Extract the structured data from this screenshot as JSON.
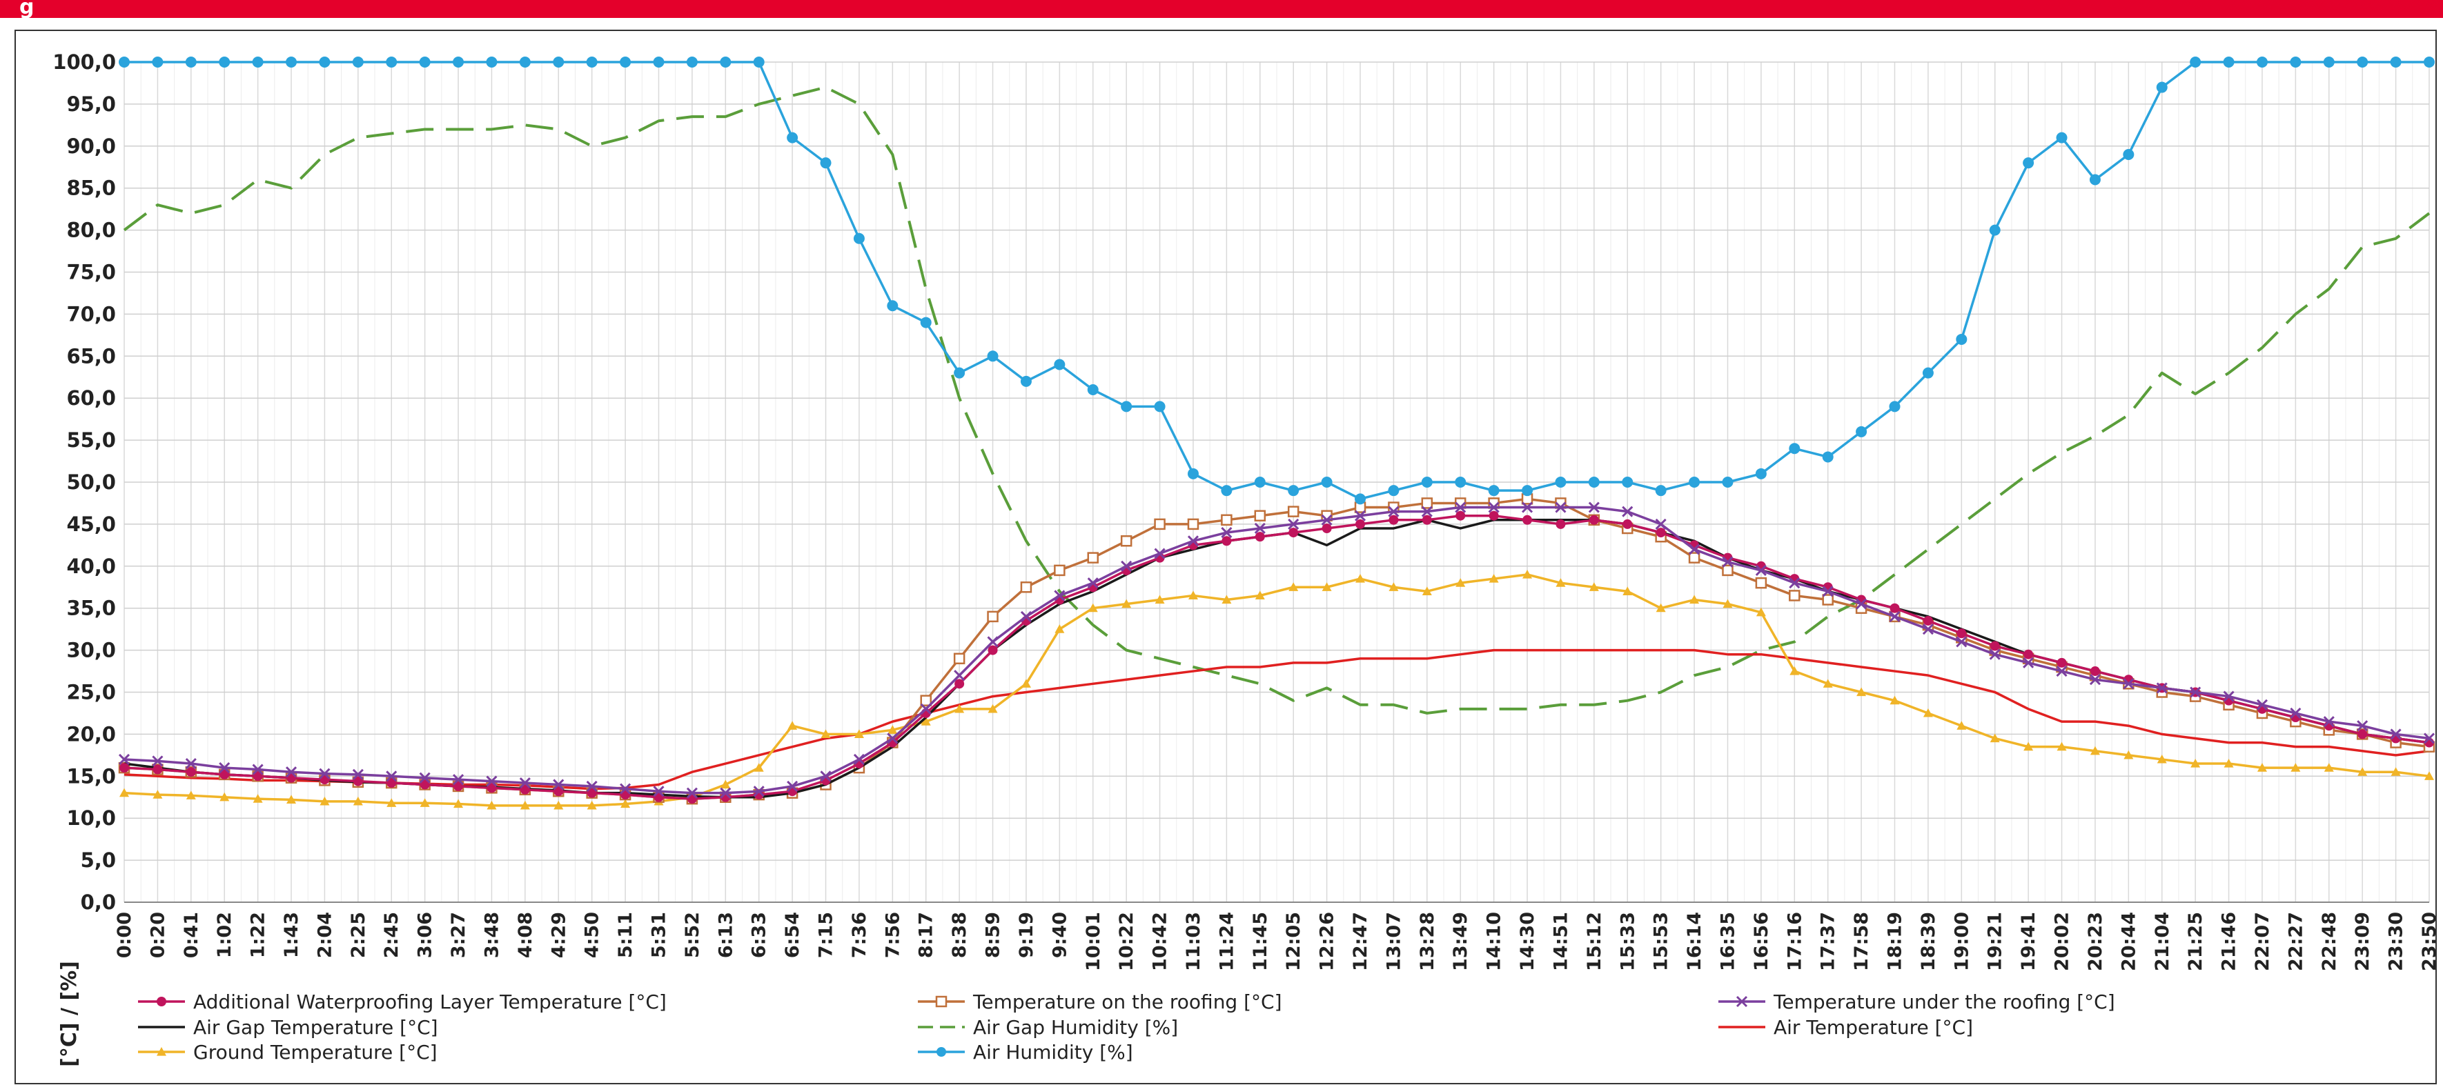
{
  "header": {
    "title": "g"
  },
  "chart_data": {
    "type": "line",
    "y_label": "[°C] / [%]",
    "ylim": [
      0,
      100
    ],
    "yticks": [
      {
        "value": 0,
        "label": "0,0"
      },
      {
        "value": 5,
        "label": "5,0"
      },
      {
        "value": 10,
        "label": "10,0"
      },
      {
        "value": 15,
        "label": "15,0"
      },
      {
        "value": 20,
        "label": "20,0"
      },
      {
        "value": 25,
        "label": "25,0"
      },
      {
        "value": 30,
        "label": "30,0"
      },
      {
        "value": 35,
        "label": "35,0"
      },
      {
        "value": 40,
        "label": "40,0"
      },
      {
        "value": 45,
        "label": "45,0"
      },
      {
        "value": 50,
        "label": "50,0"
      },
      {
        "value": 55,
        "label": "55,0"
      },
      {
        "value": 60,
        "label": "60,0"
      },
      {
        "value": 65,
        "label": "65,0"
      },
      {
        "value": 70,
        "label": "70,0"
      },
      {
        "value": 75,
        "label": "75,0"
      },
      {
        "value": 80,
        "label": "80,0"
      },
      {
        "value": 85,
        "label": "85,0"
      },
      {
        "value": 90,
        "label": "90,0"
      },
      {
        "value": 95,
        "label": "95,0"
      },
      {
        "value": 100,
        "label": "100,0"
      }
    ],
    "grid": true,
    "categories": [
      "0:00",
      "0:20",
      "0:41",
      "1:02",
      "1:22",
      "1:43",
      "2:04",
      "2:25",
      "2:45",
      "3:06",
      "3:27",
      "3:48",
      "4:08",
      "4:29",
      "4:50",
      "5:11",
      "5:31",
      "5:52",
      "6:13",
      "6:33",
      "6:54",
      "7:15",
      "7:36",
      "7:56",
      "8:17",
      "8:38",
      "8:59",
      "9:19",
      "9:40",
      "10:01",
      "10:22",
      "10:42",
      "11:03",
      "11:24",
      "11:45",
      "12:05",
      "12:26",
      "12:47",
      "13:07",
      "13:28",
      "13:49",
      "14:10",
      "14:30",
      "14:51",
      "15:12",
      "15:33",
      "15:53",
      "16:14",
      "16:35",
      "16:56",
      "17:16",
      "17:37",
      "17:58",
      "18:19",
      "18:39",
      "19:00",
      "19:21",
      "19:41",
      "20:02",
      "20:23",
      "20:44",
      "21:04",
      "21:25",
      "21:46",
      "22:07",
      "22:27",
      "22:48",
      "23:09",
      "23:30",
      "23:50"
    ],
    "series": [
      {
        "name": "Additional Waterproofing Layer Temperature [°C]",
        "color": "#c0145c",
        "marker": "circle",
        "values": [
          16,
          15.8,
          15.5,
          15.2,
          15,
          14.8,
          14.6,
          14.4,
          14.2,
          14,
          13.8,
          13.6,
          13.4,
          13.2,
          13,
          12.8,
          12.5,
          12.3,
          12.5,
          12.8,
          13.2,
          14.5,
          16.5,
          19,
          22.5,
          26,
          30,
          33.5,
          36,
          37.5,
          39.5,
          41,
          42.5,
          43,
          43.5,
          44,
          44.5,
          45,
          45.5,
          45.5,
          46,
          46,
          45.5,
          45,
          45.5,
          45,
          44,
          42.5,
          41,
          40,
          38.5,
          37.5,
          36,
          35,
          33.5,
          32,
          30.5,
          29.5,
          28.5,
          27.5,
          26.5,
          25.5,
          25,
          24,
          23,
          22,
          21,
          20,
          19.5,
          19
        ]
      },
      {
        "name": "Temperature on the roofing [°C]",
        "color": "#c0703a",
        "marker": "square",
        "values": [
          16,
          15.8,
          15.5,
          15.2,
          15,
          14.8,
          14.5,
          14.3,
          14.2,
          14,
          13.8,
          13.6,
          13.4,
          13.2,
          13,
          12.8,
          12.5,
          12.3,
          12.5,
          12.8,
          13,
          14,
          16,
          19,
          24,
          29,
          34,
          37.5,
          39.5,
          41,
          43,
          45,
          45,
          45.5,
          46,
          46.5,
          46,
          47,
          47,
          47.5,
          47.5,
          47.5,
          48,
          47.5,
          45.5,
          44.5,
          43.5,
          41,
          39.5,
          38,
          36.5,
          36,
          35,
          34,
          33,
          31.5,
          30,
          29,
          28,
          27,
          26,
          25,
          24.5,
          23.5,
          22.5,
          21.5,
          20.5,
          20,
          19,
          18.5
        ]
      },
      {
        "name": "Temperature under the roofing [°C]",
        "color": "#7b3f9e",
        "marker": "cross",
        "values": [
          17,
          16.8,
          16.5,
          16,
          15.8,
          15.5,
          15.3,
          15.2,
          15,
          14.8,
          14.6,
          14.4,
          14.2,
          14,
          13.8,
          13.5,
          13.2,
          13,
          13,
          13.2,
          13.8,
          15,
          17,
          19.5,
          23,
          27,
          31,
          34,
          36.5,
          38,
          40,
          41.5,
          43,
          44,
          44.5,
          45,
          45.5,
          46,
          46.5,
          46.5,
          47,
          47,
          47,
          47,
          47,
          46.5,
          45,
          42,
          40.5,
          39.5,
          38,
          37,
          35.5,
          34,
          32.5,
          31,
          29.5,
          28.5,
          27.5,
          26.5,
          26,
          25.5,
          25,
          24.5,
          23.5,
          22.5,
          21.5,
          21,
          20,
          19.5
        ]
      },
      {
        "name": "Air Gap Temperature [°C]",
        "color": "#1a1a1a",
        "marker": "none",
        "values": [
          16.5,
          16,
          15.5,
          15.2,
          15,
          14.8,
          14.5,
          14.3,
          14.2,
          14,
          13.8,
          13.7,
          13.5,
          13.3,
          13,
          13,
          12.8,
          12.6,
          12.5,
          12.5,
          13,
          14,
          16,
          18.5,
          22,
          26,
          30,
          33,
          35.5,
          37,
          39,
          41,
          42,
          43,
          43.5,
          44,
          42.5,
          44.5,
          44.5,
          45.5,
          44.5,
          45.5,
          45.5,
          45.5,
          45.5,
          45,
          44,
          43,
          41,
          39.5,
          38.5,
          37,
          36,
          35,
          34,
          32.5,
          31,
          29.5,
          28.5,
          27.5,
          26.5,
          25.5,
          25,
          24,
          23,
          22,
          21,
          20,
          19.5,
          19
        ]
      },
      {
        "name": "Air Gap Humidity [%]",
        "color": "#5a9e3a",
        "marker": "none",
        "dash": true,
        "values": [
          80,
          83,
          82,
          83,
          86,
          85,
          89,
          91,
          91.5,
          92,
          92,
          92,
          92.5,
          92,
          90,
          91,
          93,
          93.5,
          93.5,
          95,
          96,
          97,
          95,
          89,
          73,
          60,
          51,
          43,
          37,
          33,
          30,
          29,
          28,
          27,
          26,
          24,
          25.5,
          23.5,
          23.5,
          22.5,
          23,
          23,
          23,
          23.5,
          23.5,
          24,
          25,
          27,
          28,
          30,
          31,
          34,
          36,
          39,
          42,
          45,
          48,
          51,
          53.5,
          55.5,
          58,
          63,
          60.5,
          63,
          66,
          70,
          73,
          78,
          79,
          82
        ]
      },
      {
        "name": "Air Temperature [°C]",
        "color": "#e02020",
        "marker": "none",
        "values": [
          15.2,
          15,
          14.8,
          14.7,
          14.5,
          14.5,
          14.4,
          14.3,
          14.2,
          14.1,
          14,
          14,
          13.9,
          13.7,
          13.5,
          13.6,
          14,
          15.5,
          16.5,
          17.5,
          18.5,
          19.5,
          20,
          21.5,
          22.5,
          23.5,
          24.5,
          25,
          25.5,
          26,
          26.5,
          27,
          27.5,
          28,
          28,
          28.5,
          28.5,
          29,
          29,
          29,
          29.5,
          30,
          30,
          30,
          30,
          30,
          30,
          30,
          29.5,
          29.5,
          29,
          28.5,
          28,
          27.5,
          27,
          26,
          25,
          23,
          21.5,
          21.5,
          21,
          20,
          19.5,
          19,
          19,
          18.5,
          18.5,
          18,
          17.5,
          18
        ]
      },
      {
        "name": "Ground Temperature [°C]",
        "color": "#f0b428",
        "marker": "triangle",
        "values": [
          13,
          12.8,
          12.7,
          12.5,
          12.3,
          12.2,
          12,
          12,
          11.8,
          11.8,
          11.7,
          11.5,
          11.5,
          11.5,
          11.5,
          11.7,
          12,
          12.5,
          14,
          16,
          21,
          20,
          20,
          20.5,
          21.5,
          23,
          23,
          26,
          32.5,
          35,
          35.5,
          36,
          36.5,
          36,
          36.5,
          37.5,
          37.5,
          38.5,
          37.5,
          37,
          38,
          38.5,
          39,
          38,
          37.5,
          37,
          35,
          36,
          35.5,
          34.5,
          27.5,
          26,
          25,
          24,
          22.5,
          21,
          19.5,
          18.5,
          18.5,
          18,
          17.5,
          17,
          16.5,
          16.5,
          16,
          16,
          16,
          15.5,
          15.5,
          15
        ]
      },
      {
        "name": "Air Humidity [%]",
        "color": "#2aa3dc",
        "marker": "circle",
        "values": [
          100,
          100,
          100,
          100,
          100,
          100,
          100,
          100,
          100,
          100,
          100,
          100,
          100,
          100,
          100,
          100,
          100,
          100,
          100,
          100,
          91,
          88,
          79,
          71,
          69,
          63,
          65,
          62,
          64,
          61,
          59,
          59,
          51,
          49,
          50,
          49,
          50,
          48,
          49,
          50,
          50,
          49,
          49,
          50,
          50,
          50,
          49,
          50,
          50,
          51,
          54,
          53,
          56,
          59,
          63,
          67,
          80,
          88,
          91,
          86,
          89,
          97,
          100,
          100,
          100,
          100,
          100,
          100,
          100,
          100
        ]
      }
    ]
  }
}
